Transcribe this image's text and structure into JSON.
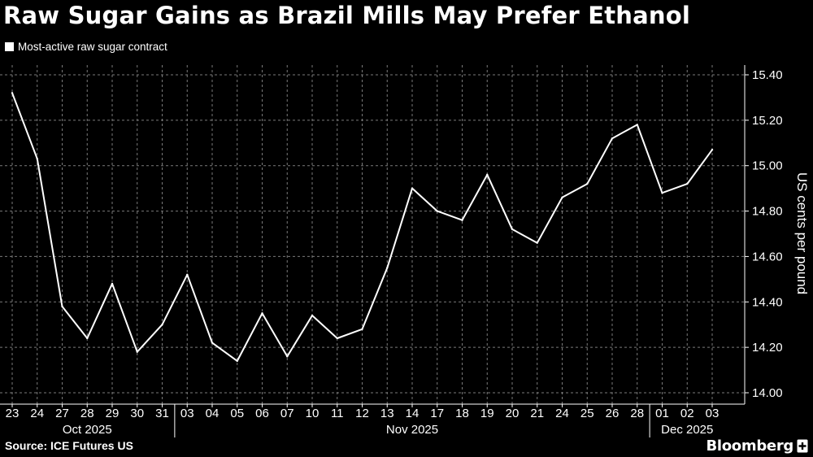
{
  "header": {
    "title": "Raw Sugar Gains as Brazil Mills May Prefer Ethanol"
  },
  "legend": {
    "label": "Most-active raw sugar contract"
  },
  "footer": {
    "source": "Source: ICE Futures US",
    "brand": "Bloomberg",
    "brand_icon": "plus-box-icon"
  },
  "colors": {
    "background": "#000000",
    "line": "#ffffff",
    "grid": "#7a7a7a"
  },
  "chart_data": {
    "type": "line",
    "ylabel": "US cents per pound",
    "ylim": [
      14.0,
      15.4
    ],
    "y_ticks": [
      "14.00",
      "14.20",
      "14.40",
      "14.60",
      "14.80",
      "15.00",
      "15.20",
      "15.40"
    ],
    "grid": "dashed vertical and horizontal",
    "y_axis_side": "right",
    "legend_position": "top-left",
    "x_tick_labels": [
      "23",
      "24",
      "27",
      "28",
      "29",
      "30",
      "31",
      "03",
      "04",
      "05",
      "06",
      "07",
      "10",
      "11",
      "12",
      "13",
      "14",
      "17",
      "18",
      "19",
      "20",
      "21",
      "24",
      "25",
      "26",
      "28",
      "01",
      "02",
      "03"
    ],
    "month_labels": [
      {
        "label": "Oct 2025",
        "first_index": 0,
        "last_index": 6
      },
      {
        "label": "Nov 2025",
        "first_index": 7,
        "last_index": 25
      },
      {
        "label": "Dec 2025",
        "first_index": 26,
        "last_index": 28
      }
    ],
    "series": [
      {
        "name": "Most-active raw sugar contract",
        "points": [
          {
            "x": "Oct 23",
            "y": 15.32
          },
          {
            "x": "Oct 24",
            "y": 15.03
          },
          {
            "x": "Oct 27",
            "y": 14.38
          },
          {
            "x": "Oct 28",
            "y": 14.24
          },
          {
            "x": "Oct 29",
            "y": 14.48
          },
          {
            "x": "Oct 30",
            "y": 14.18
          },
          {
            "x": "Oct 31",
            "y": 14.3
          },
          {
            "x": "Nov 03",
            "y": 14.52
          },
          {
            "x": "Nov 04",
            "y": 14.22
          },
          {
            "x": "Nov 05",
            "y": 14.14
          },
          {
            "x": "Nov 06",
            "y": 14.35
          },
          {
            "x": "Nov 07",
            "y": 14.16
          },
          {
            "x": "Nov 10",
            "y": 14.34
          },
          {
            "x": "Nov 11",
            "y": 14.24
          },
          {
            "x": "Nov 12",
            "y": 14.28
          },
          {
            "x": "Nov 13",
            "y": 14.55
          },
          {
            "x": "Nov 14",
            "y": 14.9
          },
          {
            "x": "Nov 17",
            "y": 14.8
          },
          {
            "x": "Nov 18",
            "y": 14.76
          },
          {
            "x": "Nov 19",
            "y": 14.96
          },
          {
            "x": "Nov 20",
            "y": 14.72
          },
          {
            "x": "Nov 21",
            "y": 14.66
          },
          {
            "x": "Nov 24",
            "y": 14.86
          },
          {
            "x": "Nov 25",
            "y": 14.92
          },
          {
            "x": "Nov 26",
            "y": 15.12
          },
          {
            "x": "Nov 28",
            "y": 15.18
          },
          {
            "x": "Dec 01",
            "y": 14.88
          },
          {
            "x": "Dec 02",
            "y": 14.92
          },
          {
            "x": "Dec 03",
            "y": 15.07
          }
        ]
      }
    ]
  }
}
